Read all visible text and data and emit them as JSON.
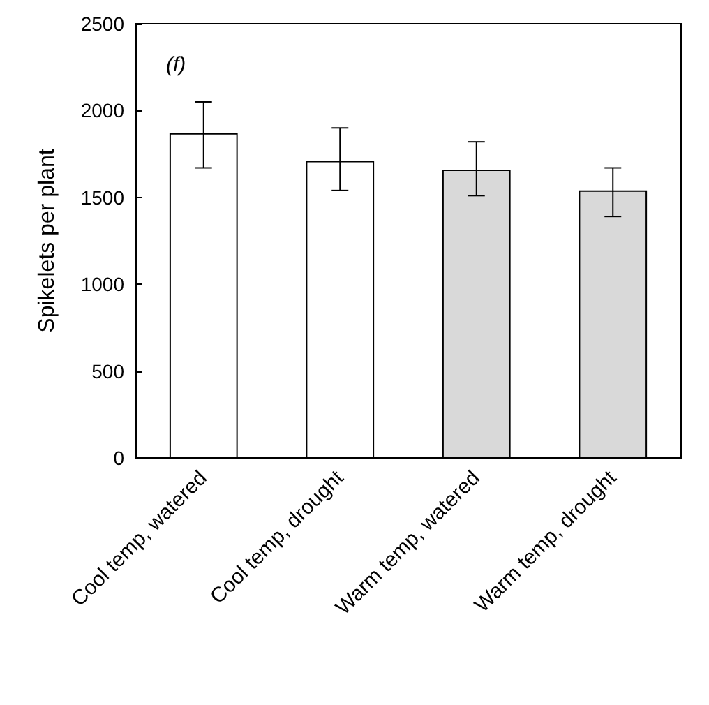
{
  "chart_data": {
    "type": "bar",
    "ylabel": "Spikelets per plant",
    "annotations": [
      "(f)"
    ],
    "categories": [
      "Cool temp, watered",
      "Cool temp, drought",
      "Warm temp, watered",
      "Warm temp, drought"
    ],
    "values": [
      1870,
      1710,
      1660,
      1540
    ],
    "colors": [
      "#ffffff",
      "#ffffff",
      "#d9d9d9",
      "#d9d9d9"
    ],
    "errors": [
      [
        1670,
        2050
      ],
      [
        1540,
        1900
      ],
      [
        1510,
        1820
      ],
      [
        1390,
        1670
      ]
    ],
    "ylim": [
      0,
      2500
    ],
    "yticks": [
      0,
      500,
      1000,
      1500,
      2000,
      2500
    ],
    "grid": false
  }
}
